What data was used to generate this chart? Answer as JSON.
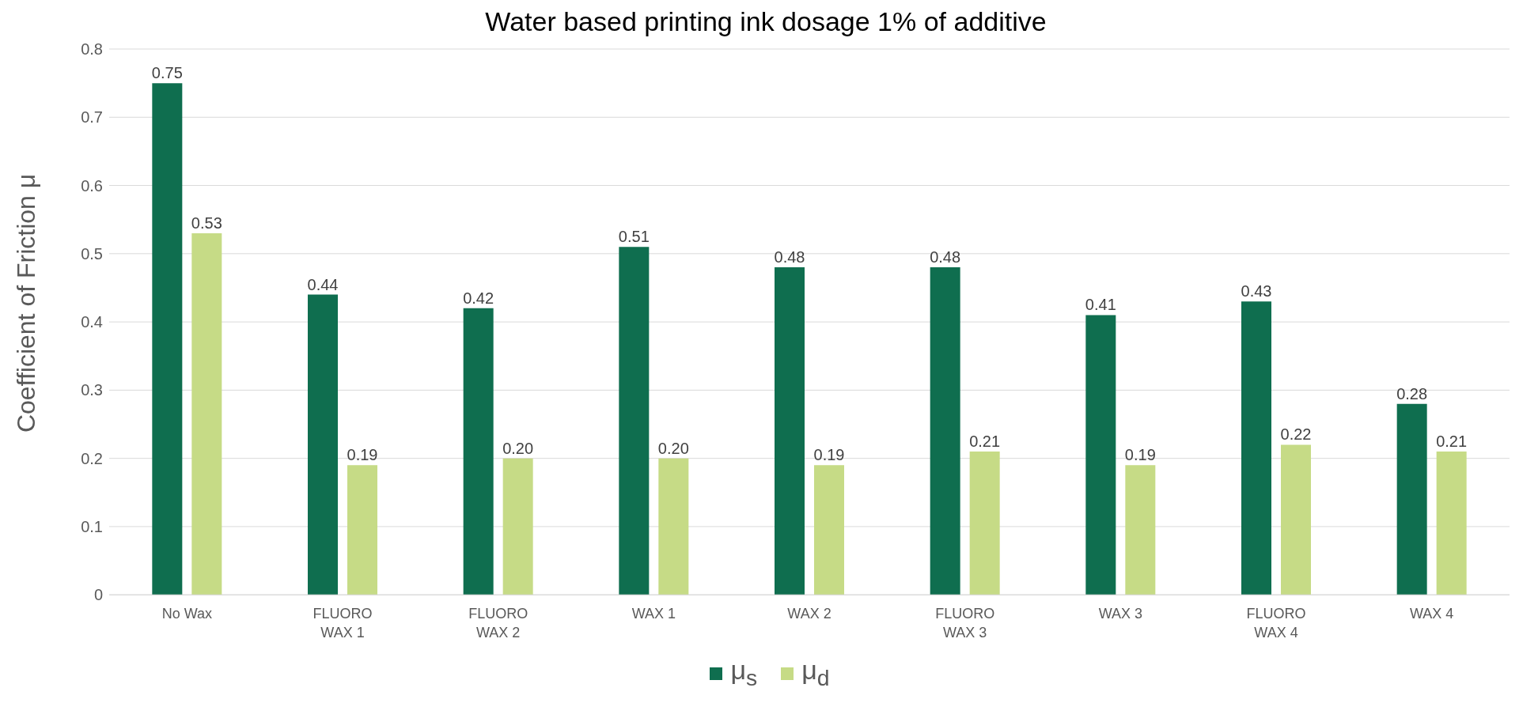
{
  "chart_data": {
    "type": "bar",
    "title": "Water based printing ink dosage 1% of additive",
    "ylabel": "Coefficient of Friction μ",
    "categories": [
      "No Wax",
      "FLUORO WAX 1",
      "FLUORO WAX 2",
      "WAX 1",
      "WAX 2",
      "FLUORO WAX 3",
      "WAX 3",
      "FLUORO WAX 4",
      "WAX 4"
    ],
    "series": [
      {
        "name": "μ$_{s}$",
        "color": "#0f6e4f",
        "values": [
          0.75,
          0.44,
          0.42,
          0.51,
          0.48,
          0.48,
          0.41,
          0.43,
          0.28
        ],
        "value_labels": [
          "0.75",
          "0.44",
          "0.42",
          "0.51",
          "0.48",
          "0.48",
          "0.41",
          "0.43",
          "0.28"
        ]
      },
      {
        "name": "μ$_{d}$",
        "color": "#c6db86",
        "values": [
          0.53,
          0.19,
          0.2,
          0.2,
          0.19,
          0.21,
          0.19,
          0.22,
          0.21
        ],
        "value_labels": [
          "0.53",
          "0.19",
          "0.20",
          "0.20",
          "0.19",
          "0.21",
          "0.19",
          "0.22",
          "0.21"
        ]
      }
    ],
    "ylim": [
      0,
      0.8
    ],
    "yticks": [
      0,
      0.1,
      0.2,
      0.3,
      0.4,
      0.5,
      0.6,
      0.7,
      0.8
    ],
    "grid": "y",
    "legend": "bottom"
  }
}
